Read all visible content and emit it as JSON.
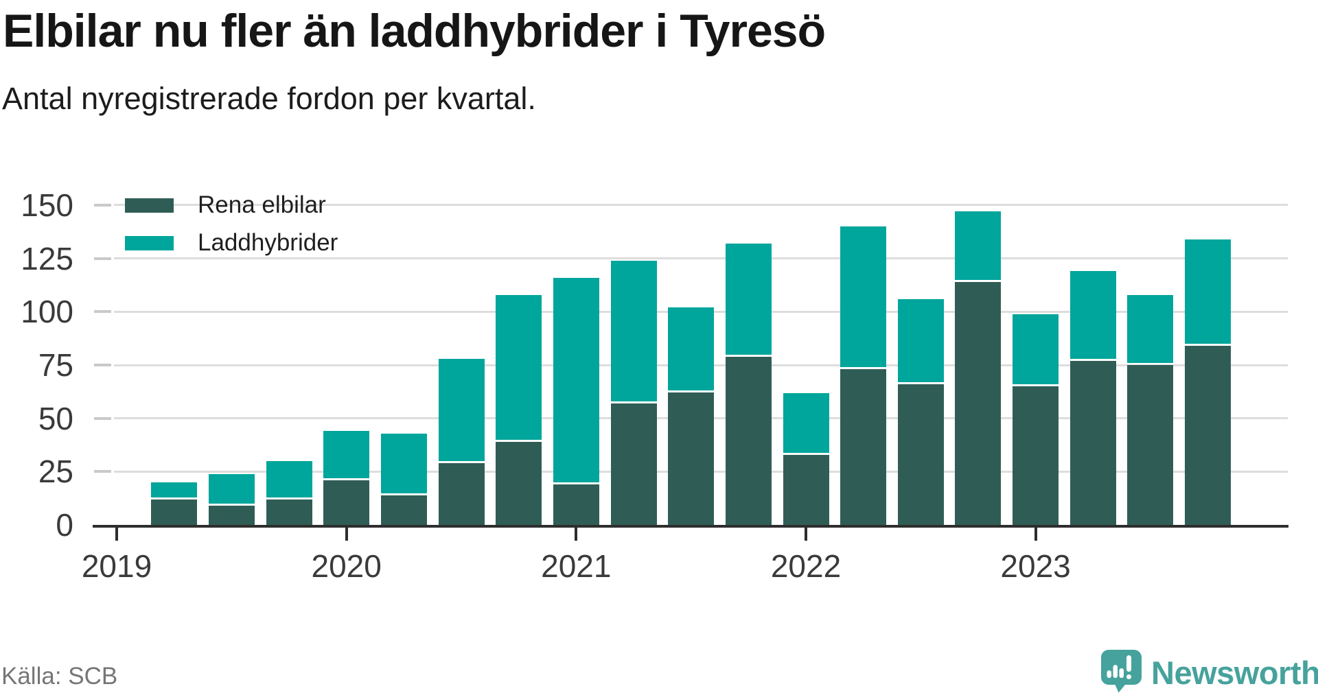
{
  "chart_data": {
    "type": "bar",
    "stacked": true,
    "title": "Elbilar nu fler än laddhybrider i Tyresö",
    "subtitle": "Antal nyregistrerade fordon per kvartal.",
    "source": "Källa: SCB",
    "categories": [
      "2019 Q2",
      "2019 Q3",
      "2019 Q4",
      "2020 Q1",
      "2020 Q2",
      "2020 Q3",
      "2020 Q4",
      "2021 Q1",
      "2021 Q2",
      "2021 Q3",
      "2021 Q4",
      "2022 Q1",
      "2022 Q2",
      "2022 Q3",
      "2022 Q4",
      "2023 Q1",
      "2023 Q2",
      "2023 Q3",
      "2023 Q4"
    ],
    "series": [
      {
        "name": "Rena elbilar",
        "color": "#2F5D55",
        "values": [
          12,
          9,
          12,
          21,
          14,
          29,
          39,
          19,
          57,
          62,
          79,
          33,
          73,
          66,
          114,
          65,
          77,
          75,
          84
        ]
      },
      {
        "name": "Laddhybrider",
        "color": "#00A59B",
        "values": [
          7,
          14,
          17,
          22,
          28,
          48,
          68,
          96,
          66,
          39,
          52,
          28,
          66,
          39,
          32,
          33,
          41,
          32,
          49
        ]
      }
    ],
    "ylim": [
      0,
      150
    ],
    "y_ticks": [
      0,
      25,
      50,
      75,
      100,
      125,
      150
    ],
    "x_tick_labels": [
      "2019",
      "2020",
      "2021",
      "2022",
      "2023"
    ],
    "grid": "horizontal",
    "legend_position": "top-left"
  },
  "footer": {
    "brand": "Newsworthy"
  },
  "colors": {
    "grid": "#DDDDDD",
    "tick_dash": "#C9C9C9",
    "axis": "#2E2E2E",
    "axis_label": "#3A3A3A",
    "title": "#161616",
    "source_text": "#767676",
    "brand_teal": "#46A29C"
  }
}
